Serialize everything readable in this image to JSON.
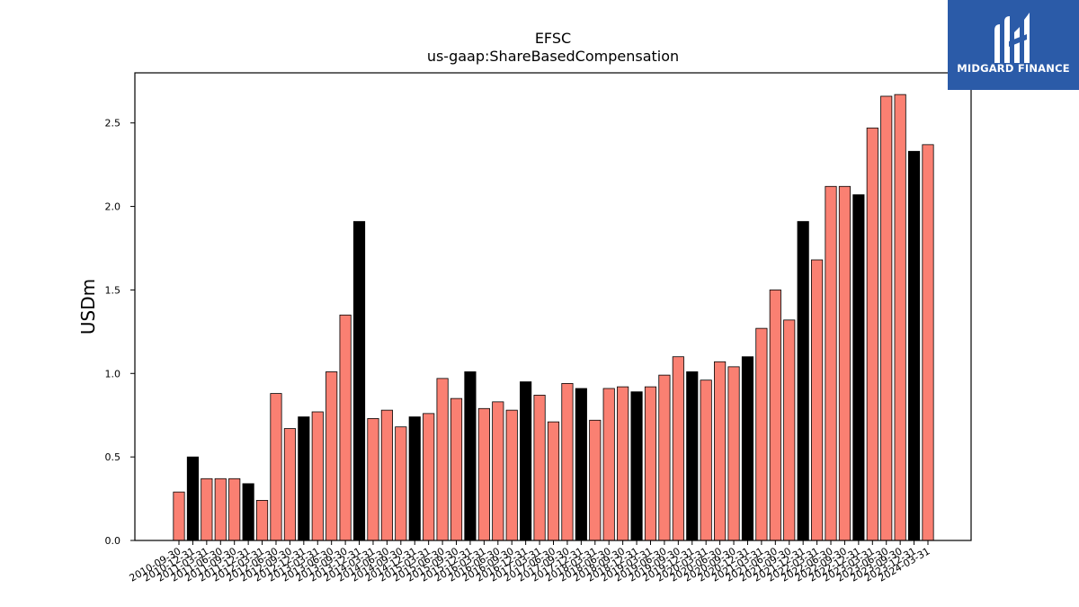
{
  "chart_data": {
    "type": "bar",
    "title": "EFSC",
    "subtitle": "us-gaap:ShareBasedCompensation",
    "ylabel": "USDm",
    "ylim": [
      0,
      2.8
    ],
    "yticks": [
      "0.0",
      "0.5",
      "1.0",
      "1.5",
      "2.0",
      "2.5"
    ],
    "colors": {
      "quarter": "#fa8072",
      "year_end": "#000000"
    },
    "categories": [
      "2010-09-30",
      "2010-12-31",
      "2011-03-31",
      "2011-06-30",
      "2011-09-30",
      "2011-12-31",
      "2012-03-31",
      "2012-06-30",
      "2012-09-30",
      "2012-12-31",
      "2013-03-31",
      "2013-06-30",
      "2013-09-30",
      "2013-12-31",
      "2014-03-31",
      "2014-06-30",
      "2014-09-30",
      "2014-12-31",
      "2015-03-31",
      "2015-06-30",
      "2015-09-30",
      "2015-12-31",
      "2016-03-31",
      "2016-06-30",
      "2016-09-30",
      "2016-12-31",
      "2017-03-31",
      "2017-06-30",
      "2017-09-30",
      "2017-12-31",
      "2018-03-31",
      "2018-06-30",
      "2018-09-30",
      "2018-12-31",
      "2019-03-31",
      "2019-06-30",
      "2019-09-30",
      "2019-12-31",
      "2020-03-31",
      "2020-06-30",
      "2020-09-30",
      "2020-12-31",
      "2021-03-31",
      "2021-06-30",
      "2021-09-30",
      "2021-12-31",
      "2022-03-31",
      "2022-06-30",
      "2022-09-30",
      "2022-12-31",
      "2023-03-31",
      "2023-06-30",
      "2023-09-30",
      "2023-12-31",
      "2024-03-31"
    ],
    "values": [
      0.29,
      0.5,
      0.37,
      0.37,
      0.37,
      0.34,
      0.24,
      0.88,
      0.67,
      0.74,
      0.77,
      1.01,
      1.35,
      1.91,
      0.73,
      0.78,
      0.68,
      0.74,
      0.76,
      0.97,
      0.85,
      1.01,
      0.79,
      0.83,
      0.78,
      0.95,
      0.87,
      0.71,
      0.94,
      0.91,
      0.72,
      0.91,
      0.92,
      0.89,
      0.92,
      0.99,
      1.1,
      1.01,
      0.96,
      1.07,
      1.04,
      1.1,
      1.27,
      1.5,
      1.32,
      1.91,
      1.68,
      2.12,
      2.12,
      2.07,
      2.47,
      2.66,
      2.67,
      2.33,
      2.37
    ],
    "year_end": [
      false,
      true,
      false,
      false,
      false,
      true,
      false,
      false,
      false,
      true,
      false,
      false,
      false,
      true,
      false,
      false,
      false,
      true,
      false,
      false,
      false,
      true,
      false,
      false,
      false,
      true,
      false,
      false,
      false,
      true,
      false,
      false,
      false,
      true,
      false,
      false,
      false,
      true,
      false,
      false,
      false,
      true,
      false,
      false,
      false,
      true,
      false,
      false,
      false,
      true,
      false,
      false,
      false,
      true,
      false
    ]
  },
  "logo": {
    "brand": "MIDGARD FINANCE",
    "icon": "midgard-logo-icon",
    "background": "#2b5ba8"
  }
}
